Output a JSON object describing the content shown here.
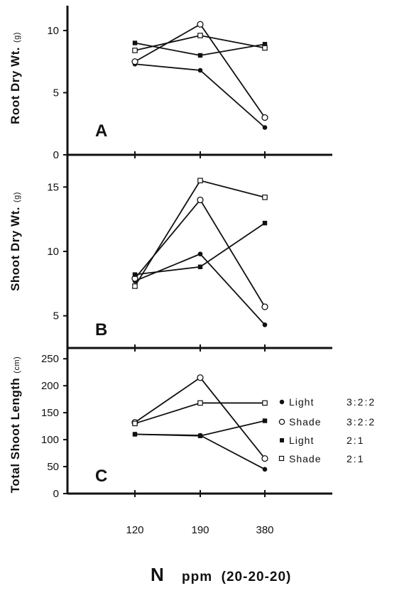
{
  "x_title": {
    "main": "N",
    "rest": "ppm  (20-20-20)"
  },
  "legend": [
    {
      "marker": "filled-circle",
      "label": "Light",
      "ratio": "3:2:2"
    },
    {
      "marker": "open-circle",
      "label": "Shade",
      "ratio": "3:2:2"
    },
    {
      "marker": "filled-square",
      "label": "Light",
      "ratio": "2:1"
    },
    {
      "marker": "open-square",
      "label": "Shade",
      "ratio": "2:1"
    }
  ],
  "chart_data": [
    {
      "type": "line",
      "panel": "A",
      "ylabel": "Root Dry Wt.",
      "ylabel_unit": "(g)",
      "x": [
        "120",
        "190",
        "380"
      ],
      "ylim": [
        0,
        12
      ],
      "yticks": [
        "0",
        "5",
        "10"
      ],
      "series": [
        {
          "name": "Light 3:2:2",
          "marker": "filled-circle",
          "values": [
            7.3,
            6.8,
            2.2
          ]
        },
        {
          "name": "Shade 3:2:2",
          "marker": "open-circle",
          "values": [
            7.5,
            10.5,
            3.0
          ]
        },
        {
          "name": "Light 2:1",
          "marker": "filled-square",
          "values": [
            9.0,
            8.0,
            8.9
          ]
        },
        {
          "name": "Shade 2:1",
          "marker": "open-square",
          "values": [
            8.4,
            9.6,
            8.6
          ]
        }
      ]
    },
    {
      "type": "line",
      "panel": "B",
      "ylabel": "Shoot Dry Wt.",
      "ylabel_unit": "(g)",
      "x": [
        "120",
        "190",
        "380"
      ],
      "ylim": [
        2.5,
        17.5
      ],
      "yticks": [
        "5",
        "10",
        "15"
      ],
      "series": [
        {
          "name": "Light 3:2:2",
          "marker": "filled-circle",
          "values": [
            7.7,
            9.8,
            4.3
          ]
        },
        {
          "name": "Shade 3:2:2",
          "marker": "open-circle",
          "values": [
            7.9,
            14.0,
            5.7
          ]
        },
        {
          "name": "Light 2:1",
          "marker": "filled-square",
          "values": [
            8.2,
            8.8,
            12.2
          ]
        },
        {
          "name": "Shade 2:1",
          "marker": "open-square",
          "values": [
            7.3,
            15.5,
            14.2
          ]
        }
      ]
    },
    {
      "type": "line",
      "panel": "C",
      "ylabel": "Total Shoot Length",
      "ylabel_unit": "(cm)",
      "x": [
        "120",
        "190",
        "380"
      ],
      "ylim": [
        0,
        270
      ],
      "yticks": [
        "0",
        "50",
        "100",
        "150",
        "200",
        "250"
      ],
      "series": [
        {
          "name": "Light 3:2:2",
          "marker": "filled-circle",
          "values": [
            110,
            108,
            45
          ]
        },
        {
          "name": "Shade 3:2:2",
          "marker": "open-circle",
          "values": [
            132,
            215,
            65
          ]
        },
        {
          "name": "Light 2:1",
          "marker": "filled-square",
          "values": [
            110,
            107,
            135
          ]
        },
        {
          "name": "Shade 2:1",
          "marker": "open-square",
          "values": [
            130,
            168,
            168
          ]
        }
      ]
    }
  ]
}
